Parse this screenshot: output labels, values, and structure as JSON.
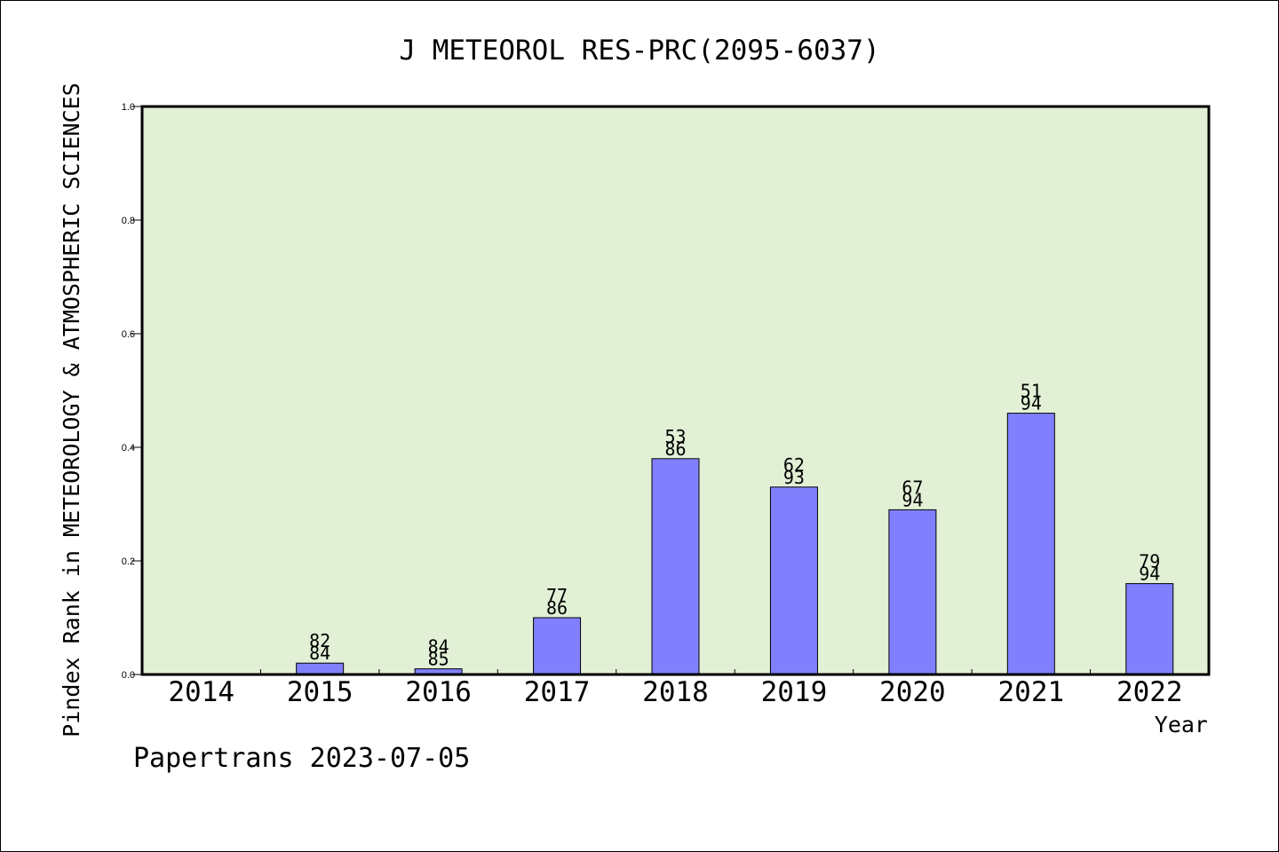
{
  "chart_data": {
    "type": "bar",
    "title": "J METEOROL RES-PRC(2095-6037)",
    "xlabel": "Year",
    "ylabel": "Pindex Rank in METEOROLOGY & ATMOSPHERIC SCIENCES",
    "ylim": [
      0,
      1.0
    ],
    "yticks": [
      "0.0",
      "0.2",
      "0.4",
      "0.6",
      "0.8",
      "1.0"
    ],
    "categories": [
      "2014",
      "2015",
      "2016",
      "2017",
      "2018",
      "2019",
      "2020",
      "2021",
      "2022"
    ],
    "values": [
      null,
      0.02,
      0.01,
      0.1,
      0.38,
      0.33,
      0.29,
      0.46,
      0.16
    ],
    "rank_labels": [
      null,
      "82",
      "84",
      "77",
      "53",
      "62",
      "67",
      "51",
      "79"
    ],
    "total_labels": [
      null,
      "84",
      "85",
      "86",
      "86",
      "93",
      "94",
      "94",
      "94"
    ],
    "grid": false,
    "colors": {
      "bar": "#8080ff",
      "plot_background": "#e2f0d6",
      "axis": "#000000"
    }
  },
  "footer": "Papertrans 2023-07-05"
}
